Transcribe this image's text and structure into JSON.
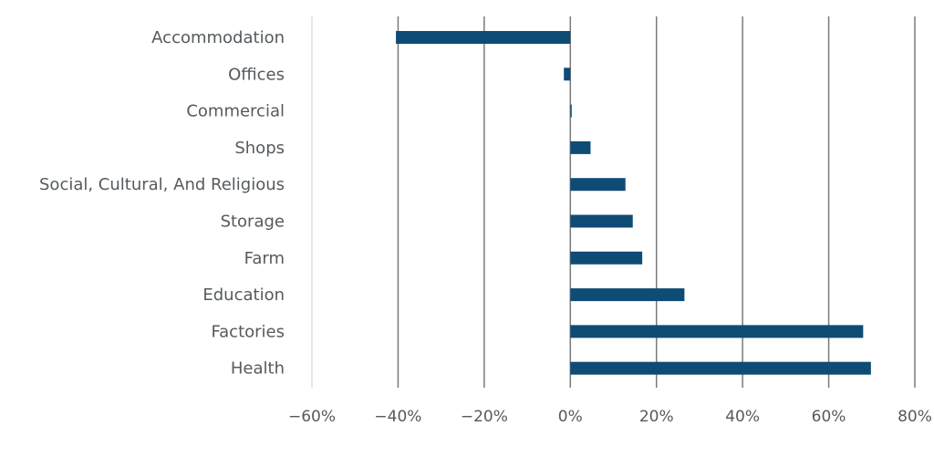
{
  "chart_data": {
    "type": "bar",
    "orientation": "horizontal",
    "categories": [
      "Accommodation",
      "Offices",
      "Commercial",
      "Shops",
      "Social, Cultural, And Religious",
      "Storage",
      "Farm",
      "Education",
      "Factories",
      "Health"
    ],
    "values": [
      -40.5,
      -1.5,
      0.3,
      4.7,
      12.8,
      14.5,
      16.7,
      26.5,
      68.0,
      69.8
    ],
    "value_unit": "%",
    "xlim": [
      -60,
      80
    ],
    "xticks": [
      -60,
      -40,
      -20,
      0,
      20,
      40,
      60,
      80
    ],
    "xtick_labels": [
      "−60%",
      "−40%",
      "−20%",
      "0%",
      "20%",
      "40%",
      "60%",
      "80%"
    ],
    "title": "",
    "xlabel": "",
    "ylabel": "",
    "grid": "vertical",
    "legend": "none",
    "colors": {
      "bar": "#0f4c75",
      "grid": "#7a7a7a",
      "text": "#555a5e"
    }
  }
}
